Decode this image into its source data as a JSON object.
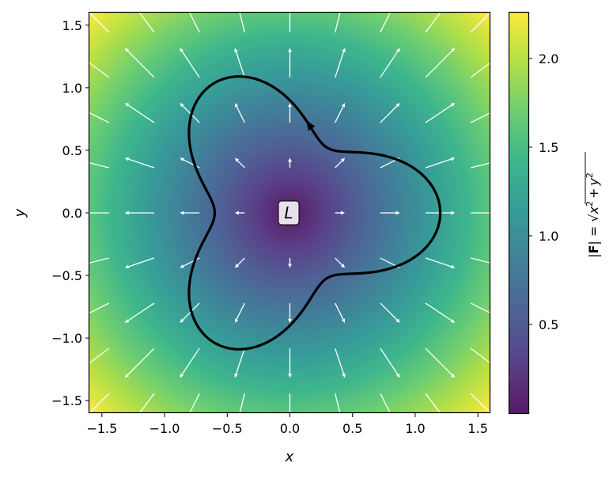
{
  "chart_data": {
    "type": "heatmap",
    "subtype": "vector-field-with-closed-curve",
    "xlabel": "x",
    "ylabel": "y",
    "xlim": [
      -1.6,
      1.6
    ],
    "ylim": [
      -1.6,
      1.6
    ],
    "xticks": [
      -1.5,
      -1.0,
      -0.5,
      0.0,
      0.5,
      1.0,
      1.5
    ],
    "xtick_labels": [
      "−1.5",
      "−1.0",
      "−0.5",
      "0.0",
      "0.5",
      "1.0",
      "1.5"
    ],
    "yticks": [
      -1.5,
      -1.0,
      -0.5,
      0.0,
      0.5,
      1.0,
      1.5
    ],
    "ytick_labels": [
      "−1.5",
      "−1.0",
      "−0.5",
      "0.0",
      "0.5",
      "1.0",
      "1.5"
    ],
    "colormap": "viridis",
    "heatmap_function": "sqrt(x^2 + y^2)",
    "colorbar": {
      "label_parts": [
        "|",
        "F",
        "| = ",
        "x",
        "2",
        "+",
        "y",
        "2"
      ],
      "range": [
        0.0,
        2.263
      ],
      "ticks": [
        0.5,
        1.0,
        1.5,
        2.0
      ],
      "tick_labels": [
        "0.5",
        "1.0",
        "1.5",
        "2.0"
      ]
    },
    "vector_field": {
      "function": "F(x,y) = (x, y)",
      "color": "#ffffff",
      "grid_x": [
        -1.6,
        -1.2,
        -0.8,
        -0.4,
        0.0,
        0.4,
        0.8,
        1.2,
        1.6
      ],
      "grid_y": [
        -1.6,
        -1.2,
        -0.8,
        -0.4,
        0.0,
        0.4,
        0.8,
        1.2,
        1.6
      ]
    },
    "curve": {
      "polar": "r(t) = 0.9 + 0.3*cos(3t)",
      "t_range": [
        0,
        6.2832
      ],
      "color": "#000000",
      "arrow_at_t": 1.4,
      "label": "L",
      "label_position": [
        0.0,
        0.0
      ]
    }
  }
}
